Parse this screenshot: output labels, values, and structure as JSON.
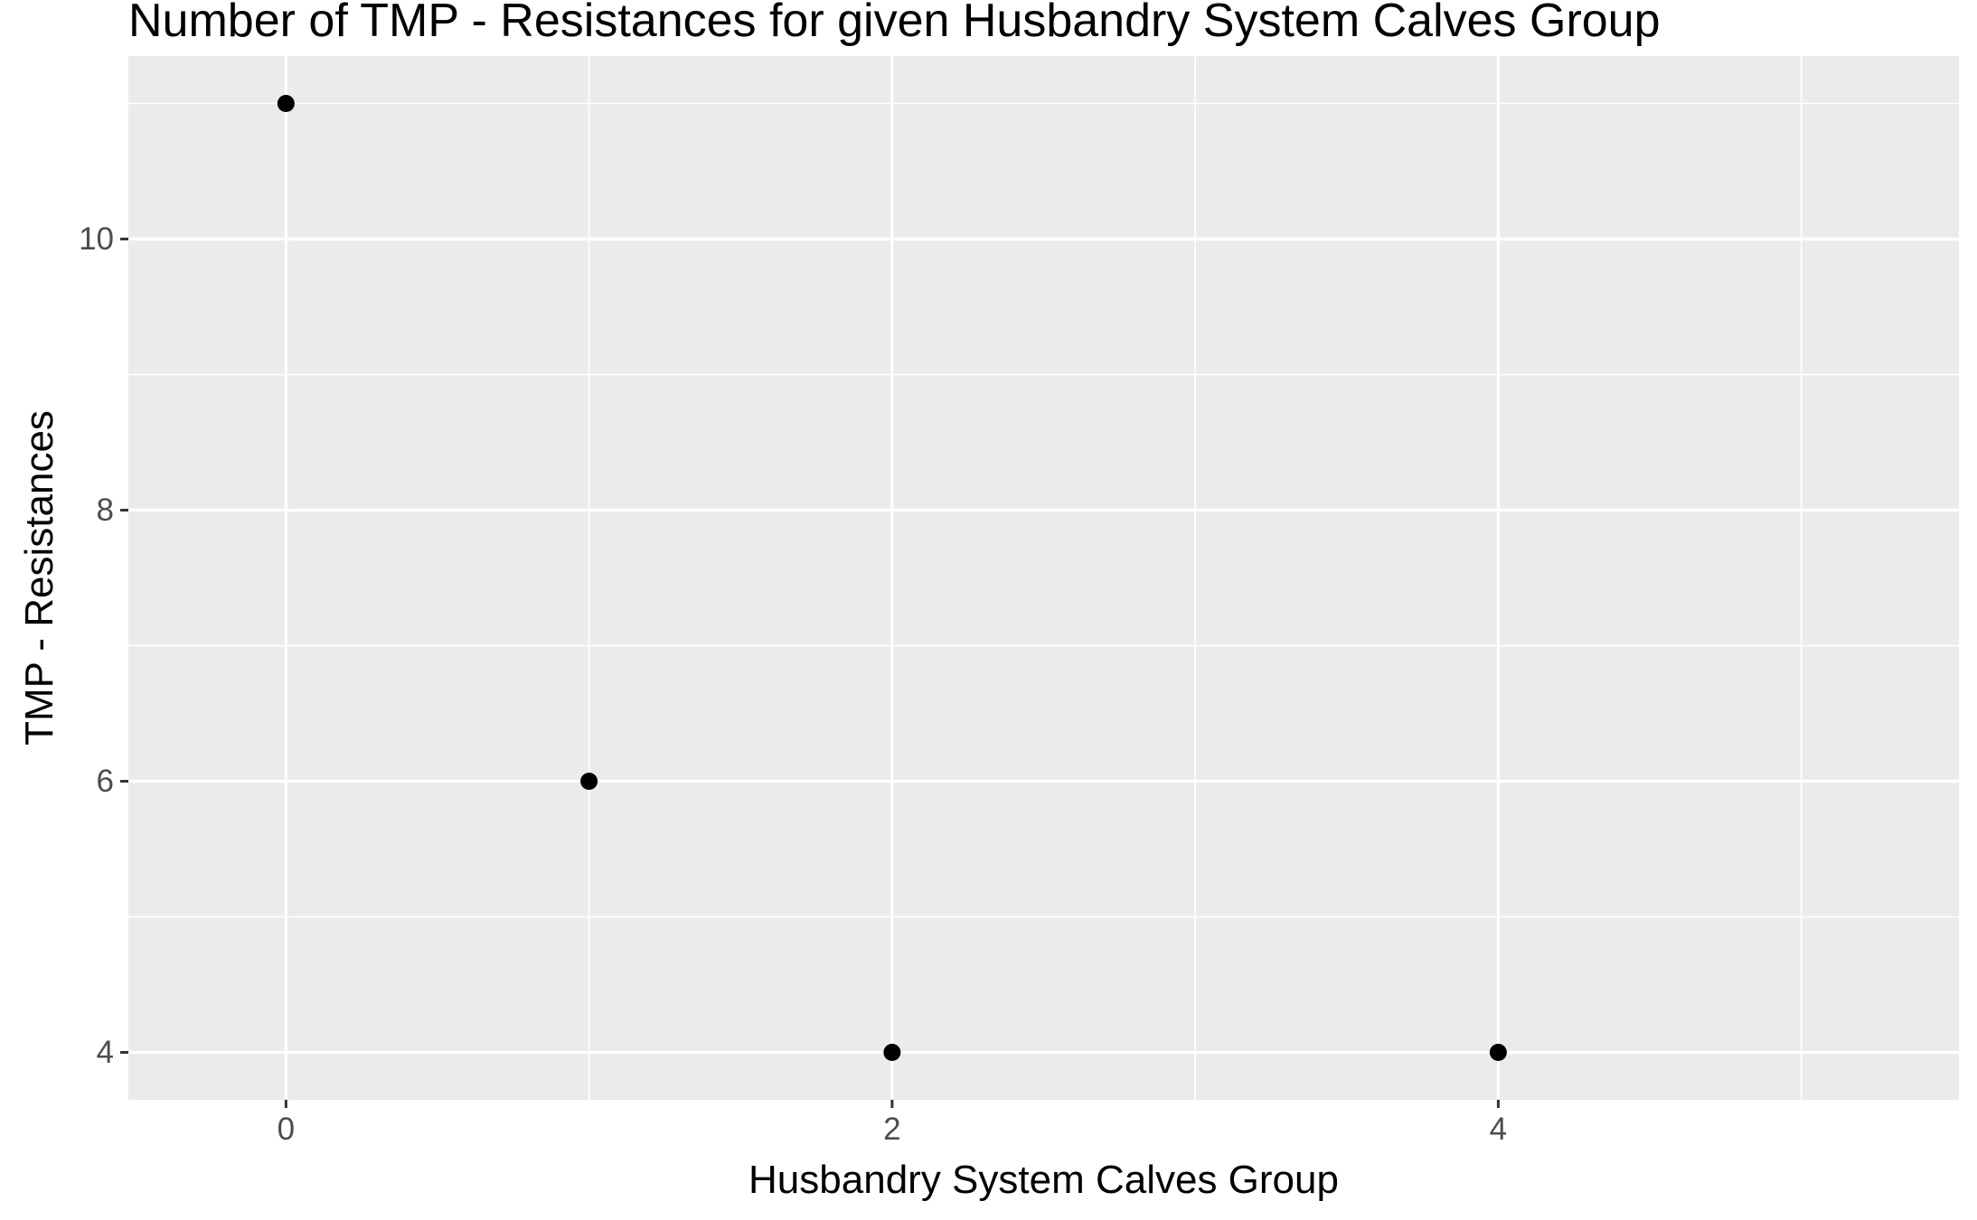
{
  "chart_data": {
    "type": "scatter",
    "title": "Number of TMP - Resistances for given Husbandry System Calves Group",
    "xlabel": "Husbandry System Calves Group",
    "ylabel": "TMP - Resistances",
    "x": [
      0,
      1,
      2,
      4
    ],
    "y": [
      11,
      6,
      4,
      4
    ],
    "xlim": [
      -0.52,
      5.52
    ],
    "ylim": [
      3.65,
      11.35
    ],
    "x_ticks": [
      0,
      2,
      4
    ],
    "x_tick_labels": [
      "0",
      "2",
      "4"
    ],
    "x_minor_ticks": [
      1,
      3,
      5
    ],
    "y_ticks": [
      4,
      6,
      8,
      10
    ],
    "y_tick_labels": [
      "4",
      "6",
      "8",
      "10"
    ],
    "y_minor_ticks": [
      5,
      7,
      9,
      11
    ],
    "grid": true,
    "legend": "none",
    "colors": {
      "panel_background": "#ebebeb",
      "grid_major": "#ffffff",
      "grid_minor": "#ffffff",
      "point": "#000000",
      "tick_label": "#4d4d4d",
      "tick_mark": "#333333"
    }
  }
}
